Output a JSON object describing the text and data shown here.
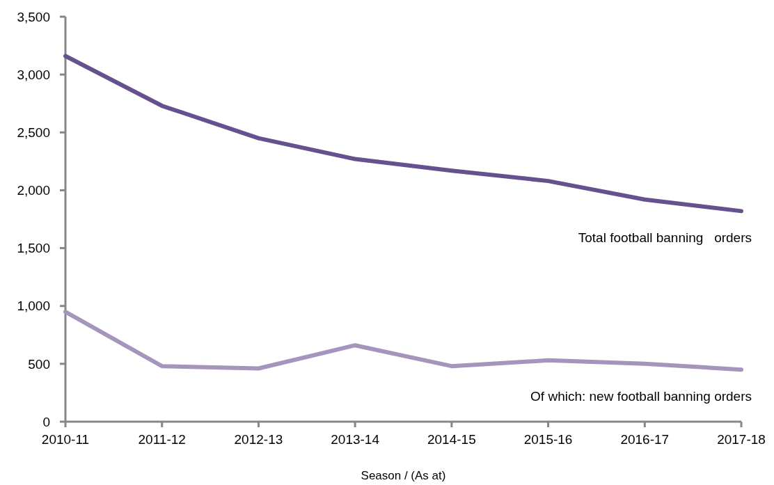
{
  "chart_data": {
    "type": "line",
    "xlabel": "Season / (As at)",
    "categories": [
      "2010-11",
      "2011-12",
      "2012-13",
      "2013-14",
      "2014-15",
      "2015-16",
      "2016-17",
      "2017-18"
    ],
    "series": [
      {
        "name": "Total football banning   orders",
        "color": "#66518f",
        "values": [
          3160,
          2730,
          2450,
          2270,
          2170,
          2080,
          1920,
          1820
        ]
      },
      {
        "name": "Of which: new football banning orders",
        "color": "#a595bd",
        "values": [
          950,
          480,
          460,
          660,
          480,
          530,
          500,
          450
        ]
      }
    ],
    "ylim": [
      0,
      3500
    ],
    "yticks": [
      {
        "value": 0,
        "label": "0"
      },
      {
        "value": 500,
        "label": "500"
      },
      {
        "value": 1000,
        "label": "1,000"
      },
      {
        "value": 1500,
        "label": "1,500"
      },
      {
        "value": 2000,
        "label": "2,000"
      },
      {
        "value": 2500,
        "label": "2,500"
      },
      {
        "value": 3000,
        "label": "3,000"
      },
      {
        "value": 3500,
        "label": "3,500"
      }
    ],
    "grid": false,
    "legend": false,
    "line_style": "solid",
    "marker": "none"
  }
}
